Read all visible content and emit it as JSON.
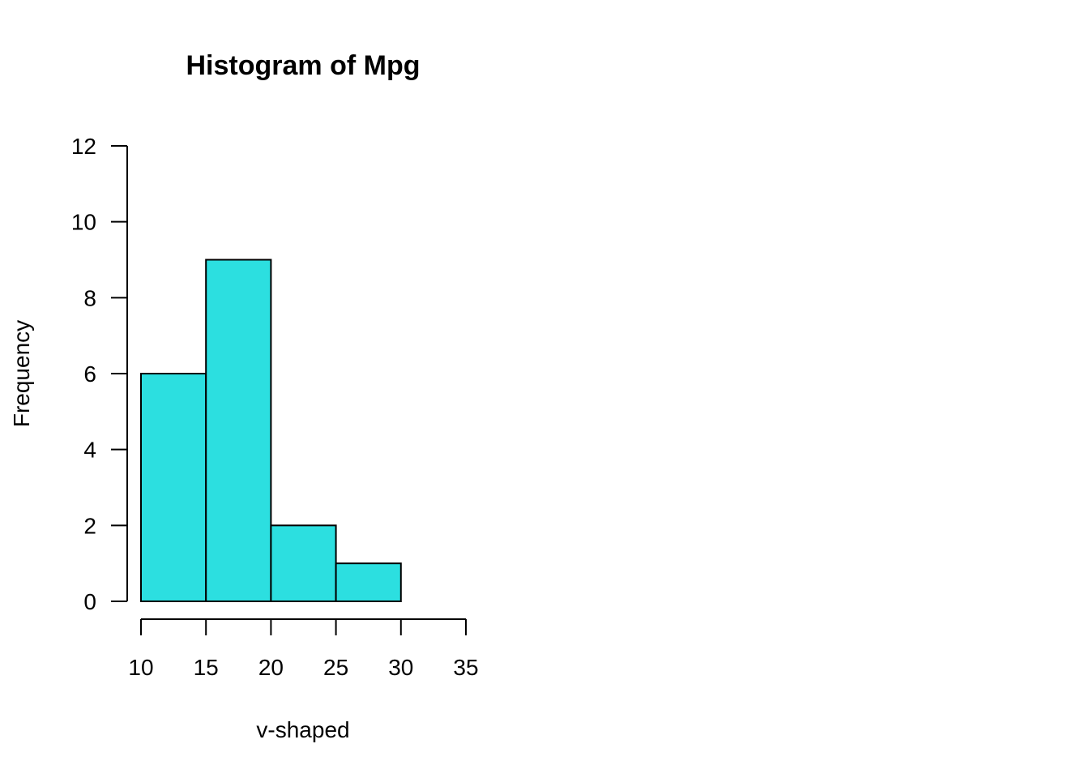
{
  "chart_data": {
    "type": "bar",
    "subtype": "histogram",
    "title": "Histogram of Mpg",
    "xlabel": "v-shaped",
    "ylabel": "Frequency",
    "bins": [
      {
        "start": 10,
        "end": 15,
        "count": 6
      },
      {
        "start": 15,
        "end": 20,
        "count": 9
      },
      {
        "start": 20,
        "end": 25,
        "count": 2
      },
      {
        "start": 25,
        "end": 30,
        "count": 1
      }
    ],
    "xlim": [
      10,
      35
    ],
    "ylim": [
      0,
      12
    ],
    "xticks": [
      "10",
      "15",
      "20",
      "25",
      "30",
      "35"
    ],
    "yticks": [
      "0",
      "2",
      "4",
      "6",
      "8",
      "10",
      "12"
    ],
    "grid": false,
    "legend": "none",
    "bar_color": "#2cdfe0",
    "border_color": "#000000"
  }
}
